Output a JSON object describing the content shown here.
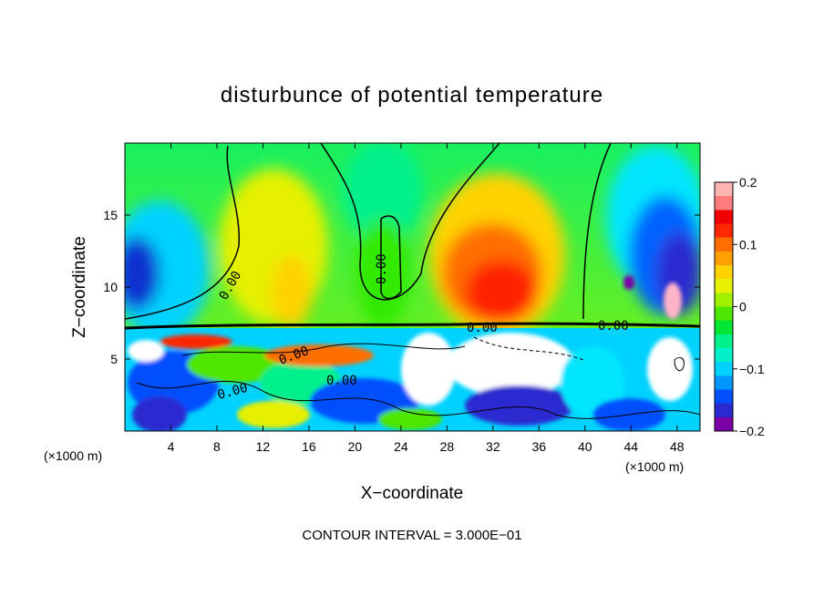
{
  "chart_data": {
    "type": "heatmap",
    "title": "disturbunce of potential temperature",
    "xlabel": "X−coordinate",
    "ylabel": "Z−coordinate",
    "x_unit_left": "(×1000 m)",
    "x_unit_right": "(×1000 m)",
    "footer": "CONTOUR INTERVAL = 3.000E−01",
    "xlim": [
      0,
      50
    ],
    "ylim": [
      0,
      20
    ],
    "x_ticks": [
      4,
      8,
      12,
      16,
      20,
      24,
      28,
      32,
      36,
      40,
      44,
      48
    ],
    "y_ticks": [
      5,
      10,
      15
    ],
    "colorbar": {
      "min": -0.2,
      "max": 0.2,
      "ticks": [
        "0.2",
        "0.1",
        "0",
        "−0.1",
        "−0.2"
      ],
      "colors": [
        "#7b00a8",
        "#2a2ad0",
        "#0050ff",
        "#0096ff",
        "#00d2ff",
        "#00f0c8",
        "#00f08c",
        "#00e632",
        "#50e600",
        "#a0f000",
        "#e6f000",
        "#ffd200",
        "#ffa000",
        "#ff6e00",
        "#ff2800",
        "#f00000",
        "#ff7c7c",
        "#ffb4b4"
      ]
    },
    "contour_labels": [
      "0.00",
      "0.00",
      "0.00",
      "0.00",
      "0.00",
      "0.00",
      "0.00"
    ]
  }
}
